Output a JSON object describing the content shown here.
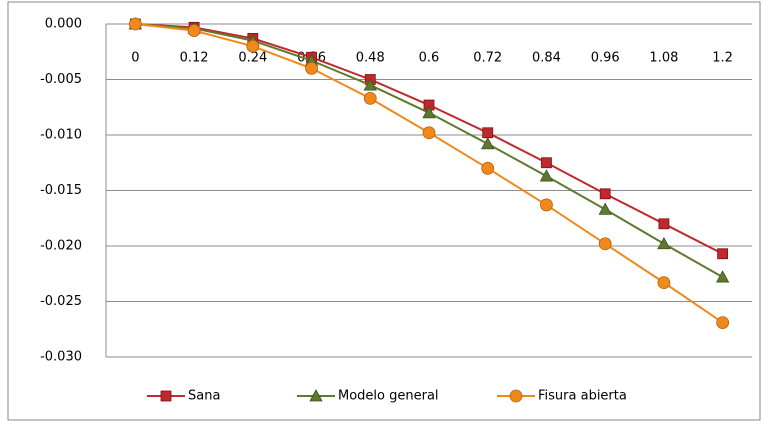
{
  "chart_data": {
    "type": "line",
    "categories": [
      "0",
      "0.12",
      "0.24",
      "0.36",
      "0.48",
      "0.6",
      "0.72",
      "0.84",
      "0.96",
      "1.08",
      "1.2"
    ],
    "series": [
      {
        "name": "Sana",
        "color": "#c0282d",
        "marker": "square",
        "values": [
          0,
          -0.0003,
          -0.0013,
          -0.003,
          -0.005,
          -0.0073,
          -0.0098,
          -0.0125,
          -0.0153,
          -0.018,
          -0.0207
        ]
      },
      {
        "name": "Modelo general",
        "color": "#5f7a2e",
        "marker": "triangle",
        "values": [
          0,
          -0.0004,
          -0.0015,
          -0.0033,
          -0.0055,
          -0.008,
          -0.0108,
          -0.0137,
          -0.0167,
          -0.0198,
          -0.0228
        ]
      },
      {
        "name": "Fisura abierta",
        "color": "#f0891c",
        "marker": "circle",
        "values": [
          0,
          -0.0006,
          -0.002,
          -0.004,
          -0.0067,
          -0.0098,
          -0.013,
          -0.0163,
          -0.0198,
          -0.0233,
          -0.0269
        ]
      }
    ],
    "ylim": [
      -0.03,
      0
    ],
    "yticks": [
      {
        "value": 0,
        "label": "0.000"
      },
      {
        "value": -0.005,
        "label": "-0.005"
      },
      {
        "value": -0.01,
        "label": "-0.010"
      },
      {
        "value": -0.015,
        "label": "-0.015"
      },
      {
        "value": -0.02,
        "label": "-0.020"
      },
      {
        "value": -0.025,
        "label": "-0.025"
      },
      {
        "value": -0.03,
        "label": "-0.030"
      }
    ],
    "grid": true,
    "legend": "bottom"
  }
}
